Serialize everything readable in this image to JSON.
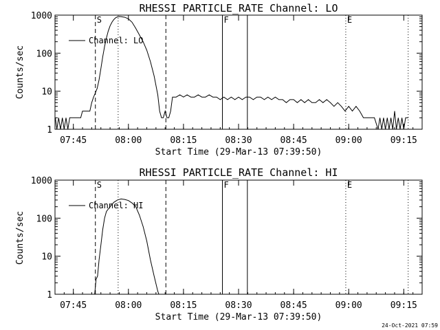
{
  "footer": {
    "timestamp": "24-Oct-2021 07:59"
  },
  "chart_data": [
    {
      "type": "line",
      "title": "RHESSI PARTICLE_RATE Channel: LO",
      "xlabel": "Start Time (29-Mar-13 07:39:50)",
      "ylabel": "Counts/sec",
      "y_scale": "log",
      "ylim": [
        1,
        1000
      ],
      "xlim_minutes_after_0740": [
        0,
        100
      ],
      "x_ticks": [
        {
          "label": "07:45",
          "min": 5
        },
        {
          "label": "08:00",
          "min": 20
        },
        {
          "label": "08:15",
          "min": 35
        },
        {
          "label": "08:30",
          "min": 50
        },
        {
          "label": "08:45",
          "min": 65
        },
        {
          "label": "09:00",
          "min": 80
        },
        {
          "label": "09:15",
          "min": 95
        }
      ],
      "y_ticks": [
        {
          "label": "1",
          "value": 1
        },
        {
          "label": "10",
          "value": 10
        },
        {
          "label": "100",
          "value": 100
        },
        {
          "label": "1000",
          "value": 1000
        }
      ],
      "legend": {
        "label": "Channel: LO",
        "position": "top-left"
      },
      "markers": [
        {
          "label": "S",
          "min": 11,
          "style": "dashed"
        },
        {
          "label": "",
          "min": 17.2,
          "style": "dotted"
        },
        {
          "label": "",
          "min": 30.2,
          "style": "dashed"
        },
        {
          "label": "F",
          "min": 45.6,
          "style": "solid"
        },
        {
          "label": "",
          "min": 52.4,
          "style": "solid"
        },
        {
          "label": "E",
          "min": 79.2,
          "style": "dotted"
        },
        {
          "label": "",
          "min": 96.2,
          "style": "dotted"
        }
      ],
      "series": [
        {
          "name": "Channel: LO",
          "points": [
            [
              0.1,
              2
            ],
            [
              0.5,
              1
            ],
            [
              1,
              2
            ],
            [
              1.5,
              1
            ],
            [
              2,
              2
            ],
            [
              2.5,
              1
            ],
            [
              3,
              2
            ],
            [
              3.5,
              1
            ],
            [
              4,
              2
            ],
            [
              5,
              2
            ],
            [
              6,
              2
            ],
            [
              7,
              2
            ],
            [
              7.5,
              3
            ],
            [
              8.5,
              3
            ],
            [
              9.5,
              3
            ],
            [
              10,
              5
            ],
            [
              10.5,
              7
            ],
            [
              11,
              9
            ],
            [
              11.5,
              12
            ],
            [
              12,
              20
            ],
            [
              12.5,
              40
            ],
            [
              13,
              80
            ],
            [
              13.5,
              150
            ],
            [
              14,
              250
            ],
            [
              14.5,
              380
            ],
            [
              15,
              520
            ],
            [
              15.5,
              650
            ],
            [
              16,
              760
            ],
            [
              16.5,
              850
            ],
            [
              17,
              900
            ],
            [
              17.5,
              920
            ],
            [
              18,
              910
            ],
            [
              19,
              880
            ],
            [
              20,
              800
            ],
            [
              21,
              650
            ],
            [
              22,
              450
            ],
            [
              23,
              300
            ],
            [
              24,
              200
            ],
            [
              25,
              120
            ],
            [
              26,
              60
            ],
            [
              27,
              25
            ],
            [
              28,
              8
            ],
            [
              28.5,
              3
            ],
            [
              29,
              2
            ],
            [
              29.5,
              2
            ],
            [
              30,
              3
            ],
            [
              30.5,
              2
            ],
            [
              31,
              2
            ],
            [
              31.5,
              3
            ],
            [
              32,
              7
            ],
            [
              33,
              7
            ],
            [
              34,
              8
            ],
            [
              35,
              7
            ],
            [
              36,
              8
            ],
            [
              37,
              7
            ],
            [
              38,
              7
            ],
            [
              39,
              8
            ],
            [
              40,
              7
            ],
            [
              41,
              7
            ],
            [
              42,
              8
            ],
            [
              43,
              7
            ],
            [
              44,
              7
            ],
            [
              45,
              6
            ],
            [
              46,
              7
            ],
            [
              47,
              6
            ],
            [
              48,
              7
            ],
            [
              49,
              6
            ],
            [
              50,
              7
            ],
            [
              51,
              6
            ],
            [
              52,
              7
            ],
            [
              53,
              7
            ],
            [
              54,
              6
            ],
            [
              55,
              7
            ],
            [
              56,
              7
            ],
            [
              57,
              6
            ],
            [
              58,
              7
            ],
            [
              59,
              6
            ],
            [
              60,
              7
            ],
            [
              61,
              6
            ],
            [
              62,
              6
            ],
            [
              63,
              5
            ],
            [
              64,
              6
            ],
            [
              65,
              6
            ],
            [
              66,
              5
            ],
            [
              67,
              6
            ],
            [
              68,
              5
            ],
            [
              69,
              6
            ],
            [
              70,
              5
            ],
            [
              71,
              5
            ],
            [
              72,
              6
            ],
            [
              73,
              5
            ],
            [
              74,
              6
            ],
            [
              75,
              5
            ],
            [
              76,
              4
            ],
            [
              77,
              5
            ],
            [
              78,
              4
            ],
            [
              79,
              3
            ],
            [
              80,
              4
            ],
            [
              81,
              3
            ],
            [
              82,
              4
            ],
            [
              83,
              3
            ],
            [
              84,
              2
            ],
            [
              85,
              2
            ],
            [
              86,
              2
            ],
            [
              87,
              2
            ],
            [
              88,
              1
            ],
            [
              88.5,
              2
            ],
            [
              89,
              1
            ],
            [
              89.5,
              2
            ],
            [
              90,
              1
            ],
            [
              90.5,
              2
            ],
            [
              91,
              1
            ],
            [
              91.5,
              2
            ],
            [
              92,
              1
            ],
            [
              92.5,
              3
            ],
            [
              93,
              1
            ],
            [
              93.5,
              2
            ],
            [
              94,
              1
            ],
            [
              94.5,
              2
            ],
            [
              95,
              1
            ],
            [
              95.5,
              2
            ],
            [
              96,
              2
            ],
            [
              96.2,
              2
            ]
          ]
        }
      ]
    },
    {
      "type": "line",
      "title": "RHESSI PARTICLE_RATE Channel: HI",
      "xlabel": "Start Time (29-Mar-13 07:39:50)",
      "ylabel": "Counts/sec",
      "y_scale": "log",
      "ylim": [
        1,
        1000
      ],
      "xlim_minutes_after_0740": [
        0,
        100
      ],
      "x_ticks": [
        {
          "label": "07:45",
          "min": 5
        },
        {
          "label": "08:00",
          "min": 20
        },
        {
          "label": "08:15",
          "min": 35
        },
        {
          "label": "08:30",
          "min": 50
        },
        {
          "label": "08:45",
          "min": 65
        },
        {
          "label": "09:00",
          "min": 80
        },
        {
          "label": "09:15",
          "min": 95
        }
      ],
      "y_ticks": [
        {
          "label": "1",
          "value": 1
        },
        {
          "label": "10",
          "value": 10
        },
        {
          "label": "100",
          "value": 100
        },
        {
          "label": "1000",
          "value": 1000
        }
      ],
      "legend": {
        "label": "Channel: HI",
        "position": "top-left"
      },
      "markers": [
        {
          "label": "S",
          "min": 11,
          "style": "dashed"
        },
        {
          "label": "",
          "min": 17.2,
          "style": "dotted"
        },
        {
          "label": "",
          "min": 30.2,
          "style": "dashed"
        },
        {
          "label": "F",
          "min": 45.6,
          "style": "solid"
        },
        {
          "label": "",
          "min": 52.4,
          "style": "solid"
        },
        {
          "label": "E",
          "min": 79.2,
          "style": "dotted"
        },
        {
          "label": "",
          "min": 96.2,
          "style": "dotted"
        }
      ],
      "series": [
        {
          "name": "Channel: HI",
          "points": [
            [
              10.8,
              1
            ],
            [
              11.2,
              2.5
            ],
            [
              11.6,
              3
            ],
            [
              12,
              8
            ],
            [
              12.5,
              20
            ],
            [
              13,
              50
            ],
            [
              13.5,
              100
            ],
            [
              14,
              150
            ],
            [
              15,
              200
            ],
            [
              16,
              260
            ],
            [
              17,
              300
            ],
            [
              18,
              320
            ],
            [
              19,
              310
            ],
            [
              20,
              290
            ],
            [
              21,
              250
            ],
            [
              22,
              200
            ],
            [
              23,
              120
            ],
            [
              24,
              60
            ],
            [
              25,
              25
            ],
            [
              26,
              8
            ],
            [
              27,
              3
            ],
            [
              28,
              1.2
            ],
            [
              28.3,
              1
            ]
          ]
        }
      ]
    }
  ]
}
